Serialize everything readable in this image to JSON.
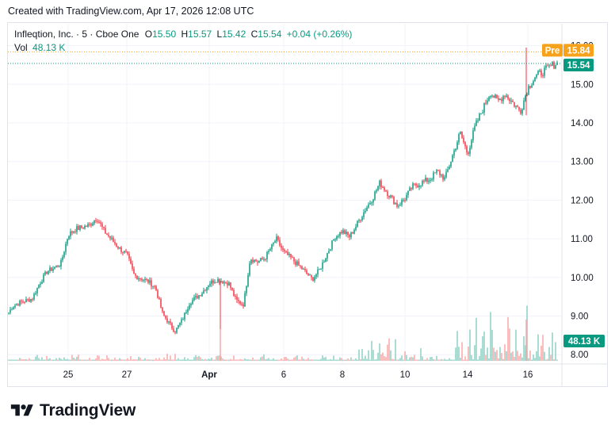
{
  "header": {
    "created_text": "Created with TradingView.com, Apr 17, 2026 12:08 UTC"
  },
  "legend": {
    "symbol": "Infleqtion, Inc. · 5 · Cboe One",
    "o_label": "O",
    "o_value": "15.50",
    "h_label": "H",
    "h_value": "15.57",
    "l_label": "L",
    "l_value": "15.42",
    "c_label": "C",
    "c_value": "15.54",
    "change": "+0.04 (+0.26%)",
    "vol_label": "Vol",
    "vol_value": "48.13 K"
  },
  "badges": {
    "pre_label": "Pre",
    "pre_price": "15.84",
    "last_price": "15.54",
    "volume": "48.13 K"
  },
  "colors": {
    "up": "#089981",
    "down": "#f23645",
    "pre": "#f7a21b",
    "grid": "#f0f3fa",
    "axis_text": "#131722",
    "volume_up": "#8fd1c6",
    "volume_down": "#f7a9a7"
  },
  "brand": {
    "name": "TradingView"
  },
  "chart_data": {
    "type": "candlestick",
    "title": "",
    "price_axis": {
      "ticks": [
        "16.00",
        "15.00",
        "14.00",
        "13.00",
        "12.00",
        "11.00",
        "10.00",
        "9.00",
        "8.00"
      ],
      "range": [
        7.95,
        16.2
      ]
    },
    "time_axis": {
      "ticks": [
        "25",
        "27",
        "Apr",
        "6",
        "8",
        "10",
        "14",
        "16"
      ]
    },
    "close_path": [
      {
        "d": "Mar 23",
        "v": 8.95
      },
      {
        "d": "Mar 23",
        "v": 9.25
      },
      {
        "d": "Mar 23",
        "v": 9.35
      },
      {
        "d": "Mar 24",
        "v": 9.45
      },
      {
        "d": "Mar 24",
        "v": 9.85
      },
      {
        "d": "Mar 24",
        "v": 10.15
      },
      {
        "d": "Mar 25",
        "v": 10.35
      },
      {
        "d": "Mar 25",
        "v": 11.1
      },
      {
        "d": "Mar 25",
        "v": 11.25
      },
      {
        "d": "Mar 26",
        "v": 11.35
      },
      {
        "d": "Mar 26",
        "v": 11.55
      },
      {
        "d": "Mar 26",
        "v": 11.2
      },
      {
        "d": "Mar 27",
        "v": 10.75
      },
      {
        "d": "Mar 27",
        "v": 10.6
      },
      {
        "d": "Mar 27",
        "v": 10.05
      },
      {
        "d": "Mar 30",
        "v": 9.9
      },
      {
        "d": "Mar 30",
        "v": 9.75
      },
      {
        "d": "Mar 30",
        "v": 9.05
      },
      {
        "d": "Mar 31",
        "v": 8.6
      },
      {
        "d": "Mar 31",
        "v": 8.9
      },
      {
        "d": "Mar 31",
        "v": 9.35
      },
      {
        "d": "Apr 1",
        "v": 9.6
      },
      {
        "d": "Apr 1",
        "v": 9.85
      },
      {
        "d": "Apr 1",
        "v": 9.95
      },
      {
        "d": "Apr 2",
        "v": 9.85
      },
      {
        "d": "Apr 2",
        "v": 9.4
      },
      {
        "d": "Apr 2",
        "v": 9.3
      },
      {
        "d": "Apr 3",
        "v": 10.5
      },
      {
        "d": "Apr 3",
        "v": 10.4
      },
      {
        "d": "Apr 3",
        "v": 10.5
      },
      {
        "d": "Apr 6",
        "v": 11.0
      },
      {
        "d": "Apr 6",
        "v": 10.65
      },
      {
        "d": "Apr 6",
        "v": 10.5
      },
      {
        "d": "Apr 7",
        "v": 10.15
      },
      {
        "d": "Apr 7",
        "v": 9.95
      },
      {
        "d": "Apr 7",
        "v": 10.2
      },
      {
        "d": "Apr 8",
        "v": 11.05
      },
      {
        "d": "Apr 8",
        "v": 11.2
      },
      {
        "d": "Apr 8",
        "v": 11.05
      },
      {
        "d": "Apr 9",
        "v": 11.75
      },
      {
        "d": "Apr 9",
        "v": 12.05
      },
      {
        "d": "Apr 9",
        "v": 12.45
      },
      {
        "d": "Apr 10",
        "v": 11.85
      },
      {
        "d": "Apr 10",
        "v": 12.05
      },
      {
        "d": "Apr 10",
        "v": 12.35
      },
      {
        "d": "Apr 13",
        "v": 12.55
      },
      {
        "d": "Apr 13",
        "v": 12.75
      },
      {
        "d": "Apr 13",
        "v": 12.55
      },
      {
        "d": "Apr 14",
        "v": 13.75
      },
      {
        "d": "Apr 14",
        "v": 13.2
      },
      {
        "d": "Apr 14",
        "v": 13.9
      },
      {
        "d": "Apr 15",
        "v": 14.8
      },
      {
        "d": "Apr 15",
        "v": 14.55
      },
      {
        "d": "Apr 15",
        "v": 14.75
      },
      {
        "d": "Apr 16",
        "v": 14.3
      },
      {
        "d": "Apr 16",
        "v": 14.9
      },
      {
        "d": "Apr 16",
        "v": 15.2
      },
      {
        "d": "Apr 17",
        "v": 15.54
      }
    ],
    "spikes": [
      {
        "d": "Apr 1",
        "low": 8.15
      },
      {
        "d": "Apr 16",
        "high": 16.0
      }
    ],
    "volume_spikes": [
      {
        "d": "Apr 9",
        "level": 0.55
      },
      {
        "d": "Apr 10",
        "level": 0.5
      },
      {
        "d": "Apr 14",
        "level": 0.75
      },
      {
        "d": "Apr 15",
        "level": 0.9
      },
      {
        "d": "Apr 16",
        "level": 1.0
      },
      {
        "d": "Apr 17",
        "level": 0.6
      }
    ],
    "last_price": 15.54,
    "premarket_price": 15.84,
    "legend_position": "top-left",
    "grid": true
  }
}
